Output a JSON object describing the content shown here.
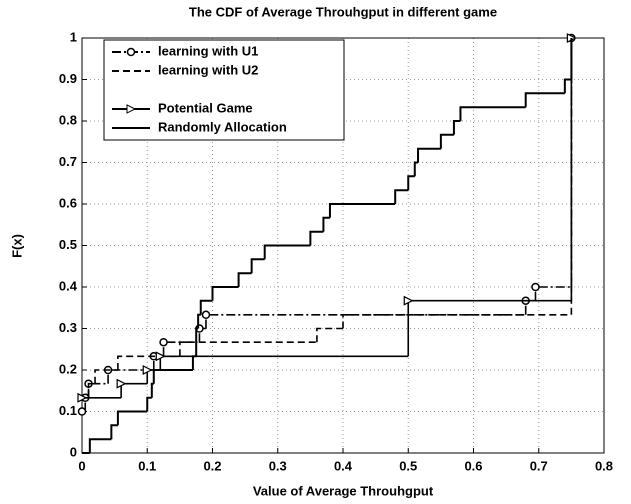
{
  "chart_data": {
    "type": "step",
    "title": "The CDF of Average Throuhgput in different game",
    "x_label": "Value of Average Throuhgput",
    "y_label": "F(x)",
    "xlim": [
      0,
      0.8
    ],
    "ylim": [
      0,
      1
    ],
    "xticks": [
      0,
      0.1,
      0.2,
      0.3,
      0.4,
      0.5,
      0.6,
      0.7,
      0.8
    ],
    "yticks": [
      0,
      0.1,
      0.2,
      0.3,
      0.4,
      0.5,
      0.6,
      0.7,
      0.8,
      0.9,
      1
    ],
    "grid": true,
    "legend": "upper left",
    "series": [
      {
        "name": "learning with U1",
        "color": "#000000",
        "dash": "9 3 2 3",
        "marker": "circle",
        "x": [
          0,
          0.005,
          0.01,
          0.04,
          0.11,
          0.125,
          0.18,
          0.19,
          0.68,
          0.695,
          0.75
        ],
        "values": [
          0.1,
          0.133,
          0.167,
          0.2,
          0.233,
          0.267,
          0.3,
          0.333,
          0.367,
          0.4,
          1
        ]
      },
      {
        "name": "learning with U2",
        "color": "#000000",
        "dash": "7 4",
        "marker": "none",
        "x": [
          0,
          0.01,
          0.02,
          0.055,
          0.15,
          0.36,
          0.4,
          0.75
        ],
        "values": [
          0.133,
          0.167,
          0.2,
          0.233,
          0.267,
          0.3,
          0.333,
          1
        ]
      },
      {
        "name": "Potential Game",
        "color": "#000000",
        "dash": "none",
        "marker": "triangle",
        "x": [
          0,
          0.06,
          0.1,
          0.12,
          0.5,
          0.75
        ],
        "values": [
          0.133,
          0.167,
          0.2,
          0.233,
          0.367,
          1
        ]
      },
      {
        "name": "Randomly Allocation",
        "color": "#000000",
        "dash": "none",
        "marker": "none",
        "x": [
          0,
          0.012,
          0.045,
          0.055,
          0.1,
          0.107,
          0.11,
          0.17,
          0.175,
          0.178,
          0.182,
          0.2,
          0.24,
          0.26,
          0.28,
          0.35,
          0.37,
          0.38,
          0.48,
          0.5,
          0.51,
          0.515,
          0.55,
          0.57,
          0.58,
          0.68,
          0.74,
          0.75
        ],
        "values": [
          0,
          0.033,
          0.067,
          0.1,
          0.133,
          0.167,
          0.2,
          0.233,
          0.3,
          0.333,
          0.367,
          0.4,
          0.433,
          0.467,
          0.5,
          0.533,
          0.567,
          0.6,
          0.633,
          0.667,
          0.7,
          0.733,
          0.767,
          0.8,
          0.833,
          0.867,
          0.9,
          1
        ]
      }
    ]
  }
}
